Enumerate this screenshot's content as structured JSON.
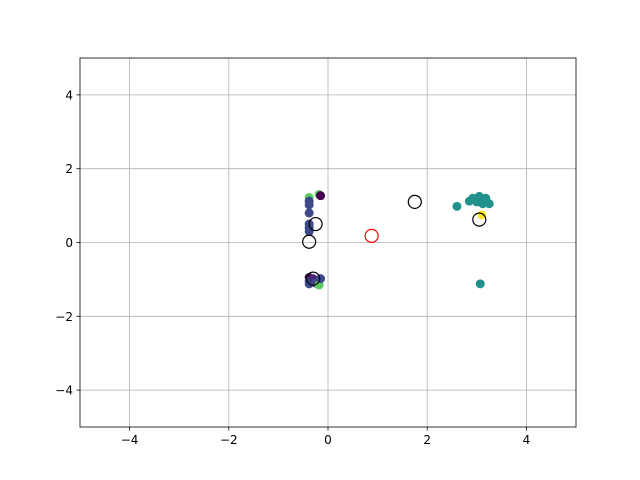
{
  "chart_data": {
    "type": "scatter",
    "title": "",
    "xlabel": "",
    "ylabel": "",
    "xlim": [
      -5,
      5
    ],
    "ylim": [
      -5,
      5
    ],
    "grid": true,
    "legend": "none",
    "x_ticks": [
      -4,
      -2,
      0,
      2,
      4
    ],
    "y_ticks": [
      -4,
      -2,
      0,
      2,
      4
    ],
    "x_tick_labels": [
      "−4",
      "−2",
      "0",
      "2",
      "4"
    ],
    "y_tick_labels": [
      "−4",
      "−2",
      "0",
      "2",
      "4"
    ],
    "colors": {
      "dark_purple": "#440154",
      "purple": "#482878",
      "slate_blue": "#3e4989",
      "blue": "#31688e",
      "teal": "#21918c",
      "green": "#5ec962",
      "yellow": "#fde725",
      "ring_black": "#000000",
      "ring_red": "#ff0000"
    },
    "series": [
      {
        "marker": "filled-circle",
        "points": [
          {
            "x": -0.38,
            "y": 1.22,
            "c": "green"
          },
          {
            "x": -0.38,
            "y": 1.12,
            "c": "slate_blue"
          },
          {
            "x": -0.38,
            "y": 1.02,
            "c": "slate_blue"
          },
          {
            "x": -0.38,
            "y": 0.8,
            "c": "slate_blue"
          },
          {
            "x": -0.38,
            "y": 0.5,
            "c": "slate_blue"
          },
          {
            "x": -0.38,
            "y": 0.4,
            "c": "slate_blue"
          },
          {
            "x": -0.38,
            "y": 0.3,
            "c": "slate_blue"
          },
          {
            "x": -0.18,
            "y": 1.3,
            "c": "green"
          },
          {
            "x": -0.15,
            "y": 1.27,
            "c": "dark_purple"
          },
          {
            "x": -0.38,
            "y": -0.95,
            "c": "dark_purple"
          },
          {
            "x": -0.38,
            "y": -1.05,
            "c": "slate_blue"
          },
          {
            "x": -0.38,
            "y": -1.12,
            "c": "slate_blue"
          },
          {
            "x": -0.3,
            "y": -0.98,
            "c": "purple"
          },
          {
            "x": -0.25,
            "y": -1.1,
            "c": "slate_blue"
          },
          {
            "x": -0.18,
            "y": -1.15,
            "c": "green"
          },
          {
            "x": -0.15,
            "y": -0.98,
            "c": "slate_blue"
          },
          {
            "x": 2.6,
            "y": 0.98,
            "c": "teal"
          },
          {
            "x": 2.85,
            "y": 1.12,
            "c": "teal"
          },
          {
            "x": 2.92,
            "y": 1.2,
            "c": "teal"
          },
          {
            "x": 3.0,
            "y": 1.1,
            "c": "teal"
          },
          {
            "x": 3.05,
            "y": 1.25,
            "c": "teal"
          },
          {
            "x": 3.1,
            "y": 1.18,
            "c": "teal"
          },
          {
            "x": 3.12,
            "y": 1.05,
            "c": "teal"
          },
          {
            "x": 3.18,
            "y": 1.2,
            "c": "teal"
          },
          {
            "x": 3.25,
            "y": 1.05,
            "c": "teal"
          },
          {
            "x": 3.1,
            "y": 0.75,
            "c": "yellow"
          },
          {
            "x": 3.07,
            "y": -1.12,
            "c": "teal"
          }
        ]
      },
      {
        "marker": "hollow-circle",
        "points": [
          {
            "x": -0.38,
            "y": 0.02,
            "c": "ring_black"
          },
          {
            "x": -0.25,
            "y": 0.5,
            "c": "ring_black"
          },
          {
            "x": -0.3,
            "y": -0.98,
            "c": "ring_black"
          },
          {
            "x": 1.75,
            "y": 1.1,
            "c": "ring_black"
          },
          {
            "x": 3.05,
            "y": 0.62,
            "c": "ring_black"
          },
          {
            "x": 0.88,
            "y": 0.18,
            "c": "ring_red"
          }
        ]
      }
    ]
  }
}
